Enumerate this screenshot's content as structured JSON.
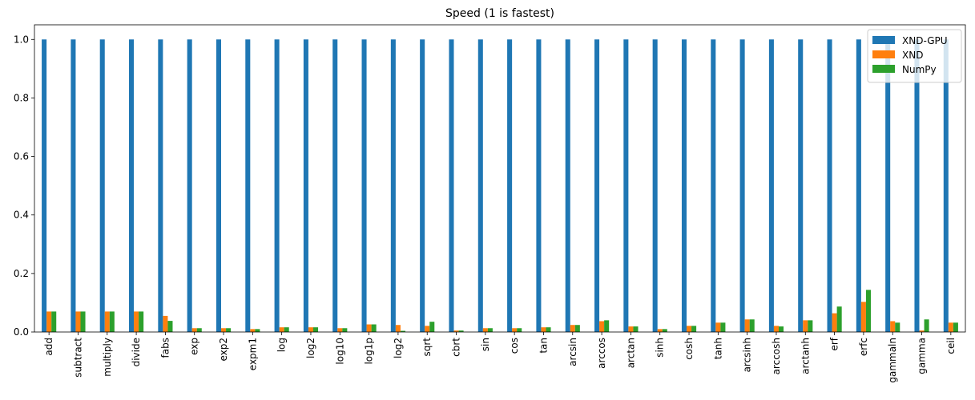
{
  "chart_data": {
    "type": "bar",
    "title": "Speed (1 is fastest)",
    "xlabel": "",
    "ylabel": "",
    "ylim": [
      0,
      1.05
    ],
    "yticks": [
      "0.0",
      "0.2",
      "0.4",
      "0.6",
      "0.8",
      "1.0"
    ],
    "grid": false,
    "legend_position": "top-right",
    "categories": [
      "add",
      "subtract",
      "multiply",
      "divide",
      "fabs",
      "exp",
      "exp2",
      "expm1",
      "log",
      "log2",
      "log10",
      "log1p",
      "log2",
      "sqrt",
      "cbrt",
      "sin",
      "cos",
      "tan",
      "arcsin",
      "arccos",
      "arctan",
      "sinh",
      "cosh",
      "tanh",
      "arcsinh",
      "arccosh",
      "arctanh",
      "erf",
      "erfc",
      "gammaln",
      "gamma",
      "ceil"
    ],
    "series": [
      {
        "name": "XND-GPU",
        "color": "#1f77b4",
        "values": [
          1,
          1,
          1,
          1,
          1,
          1,
          1,
          1,
          1,
          1,
          1,
          1,
          1,
          1,
          1,
          1,
          1,
          1,
          1,
          1,
          1,
          1,
          1,
          1,
          1,
          1,
          1,
          1,
          1,
          1,
          1,
          1
        ]
      },
      {
        "name": "XND",
        "color": "#ff7f0e",
        "values": [
          0.07,
          0.07,
          0.07,
          0.07,
          0.055,
          0.013,
          0.013,
          0.01,
          0.016,
          0.016,
          0.013,
          0.026,
          0.024,
          0.021,
          0.005,
          0.013,
          0.013,
          0.016,
          0.024,
          0.037,
          0.019,
          0.01,
          0.021,
          0.032,
          0.043,
          0.021,
          0.04,
          0.064,
          0.103,
          0.037,
          0.005,
          0.032
        ]
      },
      {
        "name": "NumPy",
        "color": "#2ca02c",
        "values": [
          0.07,
          0.07,
          0.07,
          0.07,
          0.038,
          0.013,
          0.013,
          0.01,
          0.016,
          0.016,
          0.013,
          0.026,
          0.004,
          0.035,
          0.005,
          0.013,
          0.013,
          0.016,
          0.024,
          0.04,
          0.019,
          0.01,
          0.021,
          0.032,
          0.043,
          0.019,
          0.04,
          0.087,
          0.144,
          0.032,
          0.043,
          0.032
        ]
      }
    ]
  }
}
